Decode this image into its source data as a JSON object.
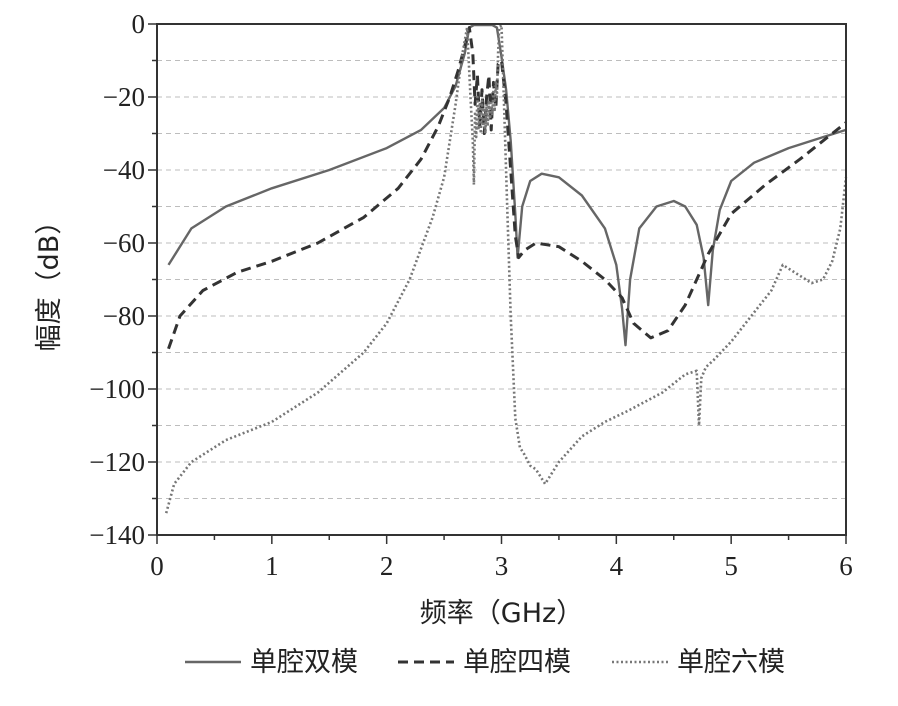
{
  "chart_data": {
    "type": "line",
    "xlabel": "频率（GHz）",
    "ylabel": "幅度（dB）",
    "xlim": [
      0,
      6
    ],
    "ylim": [
      -140,
      0
    ],
    "x_ticks": [
      0,
      1,
      2,
      3,
      4,
      5,
      6
    ],
    "y_ticks": [
      0,
      -20,
      -40,
      -60,
      -80,
      -100,
      -120,
      -140
    ],
    "x_tick_labels": [
      "0",
      "1",
      "2",
      "3",
      "4",
      "5",
      "6"
    ],
    "y_tick_labels": [
      "0",
      "−20",
      "−40",
      "−60",
      "−80",
      "−100",
      "−120",
      "−140"
    ],
    "grid": "horizontal dashed",
    "legend_position": "bottom",
    "series": [
      {
        "name": "单腔双模",
        "style": "solid",
        "color": "#666666",
        "x": [
          0.1,
          0.3,
          0.6,
          1.0,
          1.5,
          2.0,
          2.3,
          2.5,
          2.6,
          2.68,
          2.72,
          2.76,
          2.8,
          2.86,
          2.92,
          2.96,
          3.0,
          3.04,
          3.08,
          3.12,
          3.14,
          3.18,
          3.25,
          3.35,
          3.5,
          3.7,
          3.9,
          4.0,
          4.05,
          4.08,
          4.12,
          4.2,
          4.35,
          4.5,
          4.6,
          4.7,
          4.76,
          4.8,
          4.84,
          4.9,
          5.0,
          5.2,
          5.5,
          5.8,
          6.0
        ],
        "y": [
          -66,
          -56,
          -50,
          -45,
          -40,
          -34,
          -29,
          -23,
          -17,
          -8,
          -1,
          -0.3,
          -0.3,
          -0.3,
          -0.3,
          -1,
          -9,
          -18,
          -32,
          -52,
          -64,
          -50,
          -43,
          -41,
          -42,
          -47,
          -56,
          -66,
          -78,
          -88,
          -70,
          -56,
          -50,
          -48.5,
          -50,
          -55,
          -64,
          -77,
          -62,
          -51,
          -43,
          -38,
          -34,
          -31,
          -29
        ]
      },
      {
        "name": "单腔四模",
        "style": "dashed",
        "color": "#333333",
        "x": [
          0.1,
          0.2,
          0.4,
          0.7,
          1.0,
          1.4,
          1.8,
          2.1,
          2.3,
          2.45,
          2.55,
          2.62,
          2.68,
          2.72,
          2.75,
          2.77,
          2.79,
          2.81,
          2.83,
          2.85,
          2.87,
          2.89,
          2.91,
          2.93,
          2.95,
          2.97,
          3.0,
          3.04,
          3.08,
          3.12,
          3.15,
          3.2,
          3.3,
          3.5,
          3.7,
          3.9,
          4.05,
          4.15,
          4.3,
          4.45,
          4.6,
          4.8,
          5.0,
          5.3,
          5.6,
          6.0
        ],
        "y": [
          -89,
          -80,
          -73,
          -68,
          -65,
          -60,
          -53,
          -45,
          -37,
          -28,
          -20,
          -13,
          -6,
          -1,
          -8,
          -22,
          -14,
          -28,
          -18,
          -30,
          -20,
          -14,
          -29,
          -16,
          -23,
          -11,
          -10,
          -22,
          -40,
          -58,
          -64,
          -62,
          -60,
          -61,
          -65,
          -70,
          -75,
          -82,
          -86,
          -84,
          -77,
          -63,
          -52,
          -44,
          -37,
          -27
        ]
      },
      {
        "name": "单腔六模",
        "style": "dotted",
        "color": "#777777",
        "x": [
          0.08,
          0.15,
          0.3,
          0.6,
          1.0,
          1.4,
          1.8,
          2.0,
          2.2,
          2.4,
          2.5,
          2.6,
          2.66,
          2.7,
          2.73,
          2.75,
          2.76,
          2.77,
          2.78,
          2.79,
          2.8,
          2.81,
          2.82,
          2.83,
          2.84,
          2.85,
          2.86,
          2.87,
          2.88,
          2.89,
          2.9,
          2.91,
          2.92,
          2.93,
          2.94,
          2.95,
          2.96,
          2.97,
          2.98,
          3.0,
          3.02,
          3.05,
          3.08,
          3.12,
          3.16,
          3.2,
          3.25,
          3.3,
          3.38,
          3.5,
          3.7,
          3.9,
          4.1,
          4.4,
          4.6,
          4.7,
          4.72,
          4.74,
          4.78,
          4.85,
          5.0,
          5.2,
          5.35,
          5.45,
          5.55,
          5.7,
          5.8,
          5.88,
          5.95,
          6.0
        ],
        "y": [
          -134,
          -126,
          -120,
          -114,
          -109,
          -101,
          -90,
          -82,
          -70,
          -53,
          -42,
          -22,
          -8,
          -1,
          -20,
          -32,
          -44,
          -24,
          -31,
          -20,
          -29,
          -22,
          -30,
          -21,
          -28,
          -23,
          -30,
          -22,
          -28,
          -21,
          -26,
          -21,
          -25,
          -18,
          -24,
          -16,
          -20,
          -8,
          -1,
          -0.3,
          -20,
          -50,
          -80,
          -108,
          -116,
          -118,
          -121,
          -122,
          -126,
          -120,
          -113,
          -109,
          -106,
          -101,
          -96,
          -95,
          -110,
          -97,
          -94,
          -92,
          -87,
          -79,
          -73,
          -66,
          -68,
          -71,
          -70,
          -65,
          -56,
          -42
        ]
      }
    ]
  }
}
